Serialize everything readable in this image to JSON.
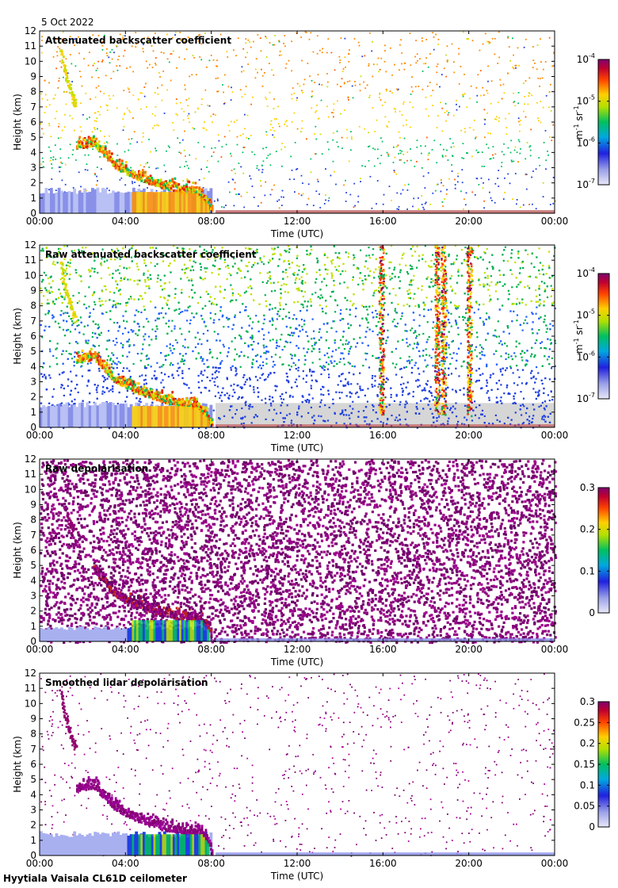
{
  "date": "5 Oct 2022",
  "footer": "Hyytiala Vaisala CL61D ceilometer",
  "chart_data": [
    {
      "type": "heatmap",
      "title": "Attenuated backscatter coefficient",
      "xlabel": "Time (UTC)",
      "ylabel": "Height (km)",
      "x_ticks": [
        "00:00",
        "04:00",
        "08:00",
        "12:00",
        "16:00",
        "20:00",
        "00:00"
      ],
      "y_ticks": [
        0,
        1,
        2,
        3,
        4,
        5,
        6,
        7,
        8,
        9,
        10,
        11,
        12
      ],
      "xlim_hours": [
        0,
        24
      ],
      "ylim_km": [
        0,
        12
      ],
      "colorbar": {
        "scale": "log",
        "ticks": [
          {
            "base": "10",
            "exp": "-4",
            "value": 0.0001
          },
          {
            "base": "10",
            "exp": "-5",
            "value": 1e-05
          },
          {
            "base": "10",
            "exp": "-6",
            "value": 1e-06
          },
          {
            "base": "10",
            "exp": "-7",
            "value": 1e-07
          }
        ],
        "unit_parts": [
          "m",
          "-1",
          " sr",
          "-1"
        ],
        "range": [
          1e-07,
          0.0001
        ]
      },
      "features": {
        "cloud_layer": [
          [
            1.7,
            4.3
          ],
          [
            2.5,
            4.5
          ],
          [
            3.5,
            3.0
          ],
          [
            4.5,
            2.3
          ],
          [
            5.5,
            1.8
          ],
          [
            6.5,
            1.4
          ],
          [
            7.3,
            1.3
          ],
          [
            7.7,
            0.7
          ],
          [
            8.0,
            0.1
          ]
        ],
        "high_cloud": [
          [
            0.9,
            10.5
          ],
          [
            1.1,
            9.0
          ],
          [
            1.3,
            8.0
          ],
          [
            1.6,
            6.8
          ]
        ],
        "surface_layer_top_km": 1.7,
        "noise_columns_hours": []
      }
    },
    {
      "type": "heatmap",
      "title": "Raw attenuated backscatter coefficient",
      "xlabel": "Time (UTC)",
      "ylabel": "Height (km)",
      "x_ticks": [
        "00:00",
        "04:00",
        "08:00",
        "12:00",
        "16:00",
        "20:00",
        "00:00"
      ],
      "y_ticks": [
        0,
        1,
        2,
        3,
        4,
        5,
        6,
        7,
        8,
        9,
        10,
        11,
        12
      ],
      "xlim_hours": [
        0,
        24
      ],
      "ylim_km": [
        0,
        12
      ],
      "colorbar": {
        "scale": "log",
        "ticks": [
          {
            "base": "10",
            "exp": "-4",
            "value": 0.0001
          },
          {
            "base": "10",
            "exp": "-5",
            "value": 1e-05
          },
          {
            "base": "10",
            "exp": "-6",
            "value": 1e-06
          },
          {
            "base": "10",
            "exp": "-7",
            "value": 1e-07
          }
        ],
        "unit_parts": [
          "m",
          "-1",
          " sr",
          "-1"
        ],
        "range": [
          1e-07,
          0.0001
        ]
      },
      "features": {
        "cloud_layer": [
          [
            1.7,
            4.3
          ],
          [
            2.5,
            4.5
          ],
          [
            3.5,
            3.0
          ],
          [
            4.5,
            2.3
          ],
          [
            5.5,
            1.8
          ],
          [
            6.5,
            1.4
          ],
          [
            7.3,
            1.3
          ],
          [
            7.7,
            0.7
          ],
          [
            8.0,
            0.1
          ]
        ],
        "high_cloud": [
          [
            0.9,
            10.5
          ],
          [
            1.1,
            9.0
          ],
          [
            1.3,
            8.0
          ],
          [
            1.6,
            6.8
          ]
        ],
        "surface_layer_top_km": 1.7,
        "noise_columns_hours": [
          15.9,
          18.5,
          18.8,
          20.0
        ]
      }
    },
    {
      "type": "heatmap",
      "title": "Raw depolarisation",
      "xlabel": "Time (UTC)",
      "ylabel": "Height (km)",
      "x_ticks": [
        "00:00",
        "04:00",
        "08:00",
        "12:00",
        "16:00",
        "20:00",
        "00:00"
      ],
      "y_ticks": [
        0,
        1,
        2,
        3,
        4,
        5,
        6,
        7,
        8,
        9,
        10,
        11,
        12
      ],
      "xlim_hours": [
        0,
        24
      ],
      "ylim_km": [
        0,
        12
      ],
      "colorbar": {
        "scale": "linear",
        "ticks": [
          {
            "label": "0.3",
            "value": 0.3
          },
          {
            "label": "0.2",
            "value": 0.2
          },
          {
            "label": "0.1",
            "value": 0.1
          },
          {
            "label": "0",
            "value": 0
          }
        ],
        "unit_parts": [],
        "range": [
          0,
          0.3
        ]
      },
      "features": {
        "cloud_layer": [
          [
            2.5,
            4.6
          ],
          [
            3.5,
            3.0
          ],
          [
            4.5,
            2.3
          ],
          [
            5.5,
            1.8
          ],
          [
            6.5,
            1.5
          ],
          [
            7.5,
            1.4
          ],
          [
            7.9,
            0.6
          ],
          [
            8.0,
            0.1
          ]
        ],
        "high_cloud": [
          [
            1.2,
            8.0
          ],
          [
            1.5,
            7.0
          ]
        ],
        "surface_layer_top_km": 1.0,
        "noise_columns_hours": []
      }
    },
    {
      "type": "heatmap",
      "title": "Smoothed lidar depolarisation",
      "xlabel": "Time (UTC)",
      "ylabel": "Height (km)",
      "x_ticks": [
        "00:00",
        "04:00",
        "08:00",
        "12:00",
        "16:00",
        "20:00",
        "00:00"
      ],
      "y_ticks": [
        0,
        1,
        2,
        3,
        4,
        5,
        6,
        7,
        8,
        9,
        10,
        11,
        12
      ],
      "xlim_hours": [
        0,
        24
      ],
      "ylim_km": [
        0,
        12
      ],
      "colorbar": {
        "scale": "linear",
        "ticks": [
          {
            "label": "0.3",
            "value": 0.3
          },
          {
            "label": "0.25",
            "value": 0.25
          },
          {
            "label": "0.2",
            "value": 0.2
          },
          {
            "label": "0.15",
            "value": 0.15
          },
          {
            "label": "0.1",
            "value": 0.1
          },
          {
            "label": "0.05",
            "value": 0.05
          },
          {
            "label": "0",
            "value": 0
          }
        ],
        "unit_parts": [],
        "range": [
          0,
          0.3
        ]
      },
      "features": {
        "cloud_layer": [
          [
            1.7,
            4.3
          ],
          [
            2.5,
            4.5
          ],
          [
            3.5,
            3.0
          ],
          [
            4.5,
            2.3
          ],
          [
            5.5,
            1.8
          ],
          [
            6.5,
            1.5
          ],
          [
            7.5,
            1.4
          ],
          [
            7.9,
            0.6
          ],
          [
            8.0,
            0.1
          ]
        ],
        "high_cloud": [
          [
            0.9,
            10.5
          ],
          [
            1.1,
            9.0
          ],
          [
            1.3,
            8.0
          ],
          [
            1.6,
            6.8
          ]
        ],
        "surface_layer_top_km": 1.6,
        "noise_columns_hours": []
      }
    }
  ]
}
